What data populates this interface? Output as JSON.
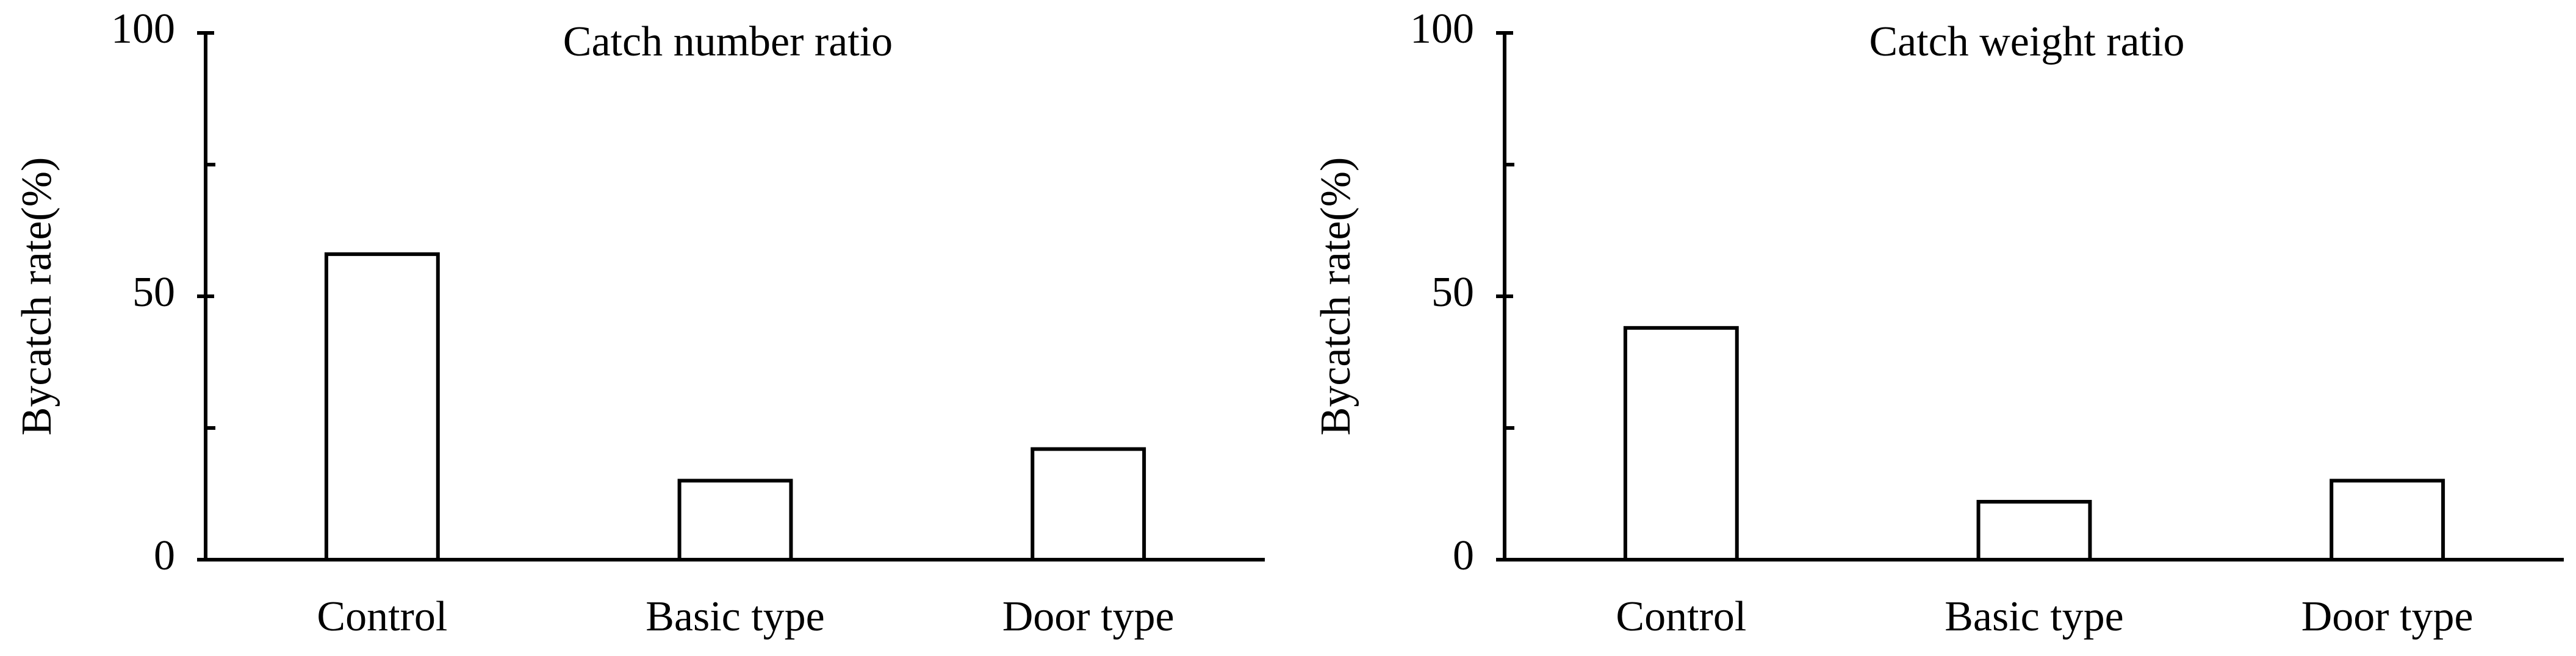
{
  "chart_data": [
    {
      "type": "bar",
      "title": "Catch number ratio",
      "y_label": "Bycatch rate(%)",
      "categories": [
        "Control",
        "Basic type",
        "Door type"
      ],
      "values": [
        58,
        15,
        21
      ],
      "color": "#ffffff",
      "ylim": [
        0,
        100
      ],
      "yticks": [
        0,
        50,
        100
      ],
      "minor_yticks": [
        25,
        75
      ],
      "grid": false
    },
    {
      "type": "bar",
      "title": "Catch weight ratio",
      "y_label": "Bycatch rate(%)",
      "categories": [
        "Control",
        "Basic type",
        "Door type"
      ],
      "values": [
        44,
        11,
        15
      ],
      "color": "#ffffff",
      "ylim": [
        0,
        100
      ],
      "yticks": [
        0,
        50,
        100
      ],
      "minor_yticks": [
        25,
        75
      ],
      "grid": false
    }
  ]
}
